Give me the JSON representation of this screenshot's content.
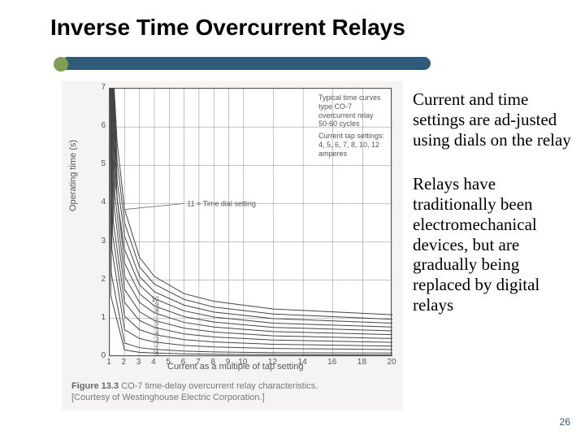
{
  "slide": {
    "title": "Inverse Time Overcurrent Relays",
    "page_number": "26",
    "accent_bar_color": "#2f5a7a",
    "bullet_color": "#7fa050"
  },
  "paragraphs": {
    "p1": "Current and time settings are ad-justed using dials on the relay",
    "p2": "Relays have traditionally been electromechanical devices, but are gradually being replaced by digital relays"
  },
  "chart": {
    "type": "line",
    "background_color": "#ffffff",
    "panel_color": "#f5f4f2",
    "grid_color": "#888888",
    "curve_color": "#444444",
    "ylabel": "Operating time (s)",
    "xlabel": "Current as a multiple of tap setting",
    "ylim": [
      0,
      7
    ],
    "yticks": [
      0,
      1,
      2,
      3,
      4,
      5,
      6,
      7
    ],
    "xlim": [
      1,
      20
    ],
    "xticks": [
      1,
      2,
      3,
      4,
      5,
      6,
      7,
      8,
      9,
      10,
      12,
      14,
      16,
      18,
      20
    ],
    "legend": {
      "line1": "Typical time curves",
      "line2": "type CO-7",
      "line3": "overcurrent relay",
      "line4": "50-60 cycles",
      "line5": "Current tap settings:",
      "line6": "4, 5, 6, 7, 8, 10, 12",
      "line7": "amperes"
    },
    "dial_setting_label": "11 = Time dial setting",
    "dial_numbers": [
      "11",
      "10",
      "9",
      "8",
      "7",
      "6",
      "5",
      "4",
      "3",
      "2",
      "1",
      "½"
    ],
    "curves": [
      {
        "dial": "11",
        "points": [
          [
            1.3,
            7.0
          ],
          [
            1.5,
            5.6
          ],
          [
            2,
            3.85
          ],
          [
            3,
            2.6
          ],
          [
            4,
            2.1
          ],
          [
            6,
            1.65
          ],
          [
            8,
            1.45
          ],
          [
            12,
            1.25
          ],
          [
            20,
            1.1
          ]
        ]
      },
      {
        "dial": "10",
        "points": [
          [
            1.28,
            7.0
          ],
          [
            1.5,
            5.1
          ],
          [
            2,
            3.5
          ],
          [
            3,
            2.35
          ],
          [
            4,
            1.9
          ],
          [
            6,
            1.5
          ],
          [
            8,
            1.3
          ],
          [
            12,
            1.12
          ],
          [
            20,
            0.98
          ]
        ]
      },
      {
        "dial": "9",
        "points": [
          [
            1.25,
            7.0
          ],
          [
            1.5,
            4.6
          ],
          [
            2,
            3.15
          ],
          [
            3,
            2.1
          ],
          [
            4,
            1.7
          ],
          [
            6,
            1.35
          ],
          [
            8,
            1.17
          ],
          [
            12,
            1.0
          ],
          [
            20,
            0.88
          ]
        ]
      },
      {
        "dial": "8",
        "points": [
          [
            1.22,
            7.0
          ],
          [
            1.5,
            4.1
          ],
          [
            2,
            2.8
          ],
          [
            3,
            1.88
          ],
          [
            4,
            1.52
          ],
          [
            6,
            1.2
          ],
          [
            8,
            1.04
          ],
          [
            12,
            0.88
          ],
          [
            20,
            0.78
          ]
        ]
      },
      {
        "dial": "7",
        "points": [
          [
            1.2,
            7.0
          ],
          [
            1.4,
            4.5
          ],
          [
            2,
            2.45
          ],
          [
            3,
            1.65
          ],
          [
            4,
            1.33
          ],
          [
            6,
            1.05
          ],
          [
            8,
            0.91
          ],
          [
            12,
            0.77
          ],
          [
            20,
            0.68
          ]
        ]
      },
      {
        "dial": "6",
        "points": [
          [
            1.17,
            7.0
          ],
          [
            1.35,
            4.2
          ],
          [
            2,
            2.1
          ],
          [
            3,
            1.42
          ],
          [
            4,
            1.15
          ],
          [
            6,
            0.9
          ],
          [
            8,
            0.78
          ],
          [
            12,
            0.66
          ],
          [
            20,
            0.58
          ]
        ]
      },
      {
        "dial": "5",
        "points": [
          [
            1.15,
            7.0
          ],
          [
            1.3,
            3.9
          ],
          [
            2,
            1.76
          ],
          [
            3,
            1.18
          ],
          [
            4,
            0.95
          ],
          [
            6,
            0.75
          ],
          [
            8,
            0.65
          ],
          [
            12,
            0.55
          ],
          [
            20,
            0.48
          ]
        ]
      },
      {
        "dial": "4",
        "points": [
          [
            1.12,
            7.0
          ],
          [
            1.25,
            3.5
          ],
          [
            2,
            1.42
          ],
          [
            3,
            0.95
          ],
          [
            4,
            0.77
          ],
          [
            6,
            0.6
          ],
          [
            8,
            0.52
          ],
          [
            12,
            0.44
          ],
          [
            20,
            0.38
          ]
        ]
      },
      {
        "dial": "3",
        "points": [
          [
            1.1,
            7.0
          ],
          [
            1.2,
            3.2
          ],
          [
            2,
            1.06
          ],
          [
            3,
            0.71
          ],
          [
            4,
            0.58
          ],
          [
            6,
            0.45
          ],
          [
            8,
            0.39
          ],
          [
            12,
            0.33
          ],
          [
            20,
            0.28
          ]
        ]
      },
      {
        "dial": "2",
        "points": [
          [
            1.08,
            7.0
          ],
          [
            1.15,
            2.8
          ],
          [
            2,
            0.71
          ],
          [
            3,
            0.48
          ],
          [
            4,
            0.39
          ],
          [
            6,
            0.3
          ],
          [
            8,
            0.26
          ],
          [
            12,
            0.22
          ],
          [
            20,
            0.19
          ]
        ]
      },
      {
        "dial": "1",
        "points": [
          [
            1.05,
            7.0
          ],
          [
            1.1,
            2.2
          ],
          [
            2,
            0.36
          ],
          [
            3,
            0.24
          ],
          [
            4,
            0.2
          ],
          [
            6,
            0.15
          ],
          [
            8,
            0.13
          ],
          [
            12,
            0.11
          ],
          [
            20,
            0.1
          ]
        ]
      },
      {
        "dial": "½",
        "points": [
          [
            1.03,
            7.0
          ],
          [
            1.07,
            1.6
          ],
          [
            2,
            0.18
          ],
          [
            3,
            0.12
          ],
          [
            4,
            0.1
          ],
          [
            6,
            0.08
          ],
          [
            8,
            0.07
          ],
          [
            12,
            0.06
          ],
          [
            20,
            0.05
          ]
        ]
      }
    ]
  },
  "figure_caption": {
    "bold": "Figure 13.3",
    "text": "CO-7 time-delay overcurrent relay characteristics.",
    "credit": "[Courtesy of Westinghouse Electric Corporation.]"
  }
}
